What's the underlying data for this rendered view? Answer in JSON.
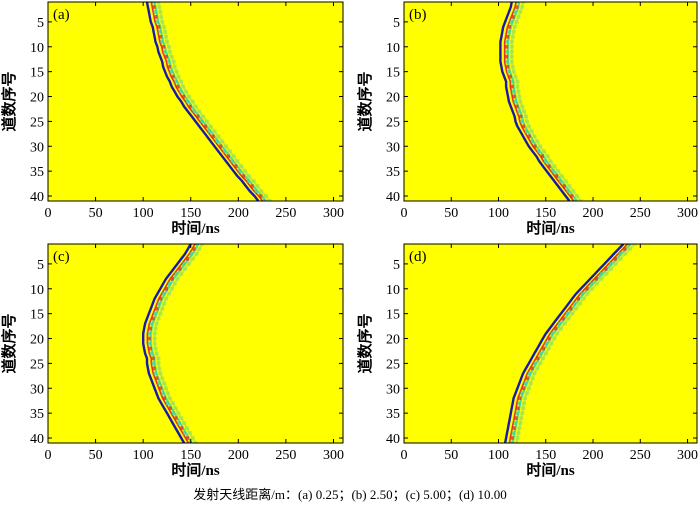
{
  "figure": {
    "caption": "发射天线距离/m：(a) 0.25；(b) 2.50；(c) 5.00；(d) 10.00"
  },
  "colors": {
    "background": "#ffff00",
    "wave_primary": "#1a1aa8",
    "wave_secondary": "#e02020",
    "wave_tertiary": "#30d0b0",
    "wave_fade": "#90e060"
  },
  "chart_data": [
    {
      "type": "heatmap",
      "panel_label": "(a)",
      "xlabel": "时间/ns",
      "ylabel": "道数序号",
      "xlim": [
        0,
        310
      ],
      "ylim": [
        41,
        1
      ],
      "xticks": [
        0,
        50,
        100,
        150,
        200,
        250,
        300
      ],
      "yticks": [
        5,
        10,
        15,
        20,
        25,
        30,
        35,
        40
      ],
      "first_arrival_ns": [
        104,
        105,
        106,
        107,
        108,
        110,
        111,
        112,
        113,
        115,
        116,
        118,
        120,
        121,
        123,
        125,
        128,
        130,
        133,
        136,
        140,
        143,
        147,
        151,
        155,
        159,
        163,
        167,
        171,
        175,
        179,
        183,
        187,
        191,
        195,
        199,
        204,
        208,
        212,
        217,
        221
      ],
      "trace_index": [
        1,
        2,
        3,
        4,
        5,
        6,
        7,
        8,
        9,
        10,
        11,
        12,
        13,
        14,
        15,
        16,
        17,
        18,
        19,
        20,
        21,
        22,
        23,
        24,
        25,
        26,
        27,
        28,
        29,
        30,
        31,
        32,
        33,
        34,
        35,
        36,
        37,
        38,
        39,
        40,
        41
      ]
    },
    {
      "type": "heatmap",
      "panel_label": "(b)",
      "xlabel": "时间/ns",
      "ylabel": "道数序号",
      "xlim": [
        0,
        310
      ],
      "ylim": [
        41,
        1
      ],
      "xticks": [
        0,
        50,
        100,
        150,
        200,
        250,
        300
      ],
      "yticks": [
        5,
        10,
        15,
        20,
        25,
        30,
        35,
        40
      ],
      "first_arrival_ns": [
        114,
        113,
        111,
        109,
        107,
        105,
        104,
        103,
        102,
        102,
        102,
        102,
        102,
        103,
        104,
        106,
        108,
        108,
        109,
        110,
        111,
        113,
        115,
        117,
        118,
        120,
        123,
        126,
        129,
        132,
        136,
        140,
        143,
        147,
        151,
        155,
        159,
        163,
        167,
        171,
        175
      ],
      "trace_index": [
        1,
        2,
        3,
        4,
        5,
        6,
        7,
        8,
        9,
        10,
        11,
        12,
        13,
        14,
        15,
        16,
        17,
        18,
        19,
        20,
        21,
        22,
        23,
        24,
        25,
        26,
        27,
        28,
        29,
        30,
        31,
        32,
        33,
        34,
        35,
        36,
        37,
        38,
        39,
        40,
        41
      ]
    },
    {
      "type": "heatmap",
      "panel_label": "(c)",
      "xlabel": "时间/ns",
      "ylabel": "道数序号",
      "xlim": [
        0,
        310
      ],
      "ylim": [
        41,
        1
      ],
      "xticks": [
        0,
        50,
        100,
        150,
        200,
        250,
        300
      ],
      "yticks": [
        5,
        10,
        15,
        20,
        25,
        30,
        35,
        40
      ],
      "first_arrival_ns": [
        150,
        147,
        144,
        140,
        136,
        132,
        128,
        124,
        121,
        118,
        115,
        112,
        110,
        108,
        106,
        104,
        102,
        101,
        100,
        100,
        100,
        101,
        102,
        104,
        104,
        105,
        106,
        108,
        110,
        112,
        114,
        116,
        119,
        122,
        125,
        128,
        131,
        134,
        137,
        140,
        143
      ],
      "trace_index": [
        1,
        2,
        3,
        4,
        5,
        6,
        7,
        8,
        9,
        10,
        11,
        12,
        13,
        14,
        15,
        16,
        17,
        18,
        19,
        20,
        21,
        22,
        23,
        24,
        25,
        26,
        27,
        28,
        29,
        30,
        31,
        32,
        33,
        34,
        35,
        36,
        37,
        38,
        39,
        40,
        41
      ]
    },
    {
      "type": "heatmap",
      "panel_label": "(d)",
      "xlabel": "时间/ns",
      "ylabel": "道数序号",
      "xlim": [
        0,
        310
      ],
      "ylim": [
        41,
        1
      ],
      "xticks": [
        0,
        50,
        100,
        150,
        200,
        250,
        300
      ],
      "yticks": [
        5,
        10,
        15,
        20,
        25,
        30,
        35,
        40
      ],
      "first_arrival_ns": [
        232,
        227,
        222,
        217,
        212,
        207,
        202,
        197,
        192,
        187,
        182,
        178,
        174,
        170,
        166,
        162,
        158,
        154,
        150,
        147,
        144,
        141,
        138,
        135,
        132,
        129,
        126,
        124,
        122,
        120,
        118,
        116,
        115,
        114,
        113,
        112,
        111,
        110,
        109,
        108,
        107
      ],
      "trace_index": [
        1,
        2,
        3,
        4,
        5,
        6,
        7,
        8,
        9,
        10,
        11,
        12,
        13,
        14,
        15,
        16,
        17,
        18,
        19,
        20,
        21,
        22,
        23,
        24,
        25,
        26,
        27,
        28,
        29,
        30,
        31,
        32,
        33,
        34,
        35,
        36,
        37,
        38,
        39,
        40,
        41
      ]
    }
  ]
}
